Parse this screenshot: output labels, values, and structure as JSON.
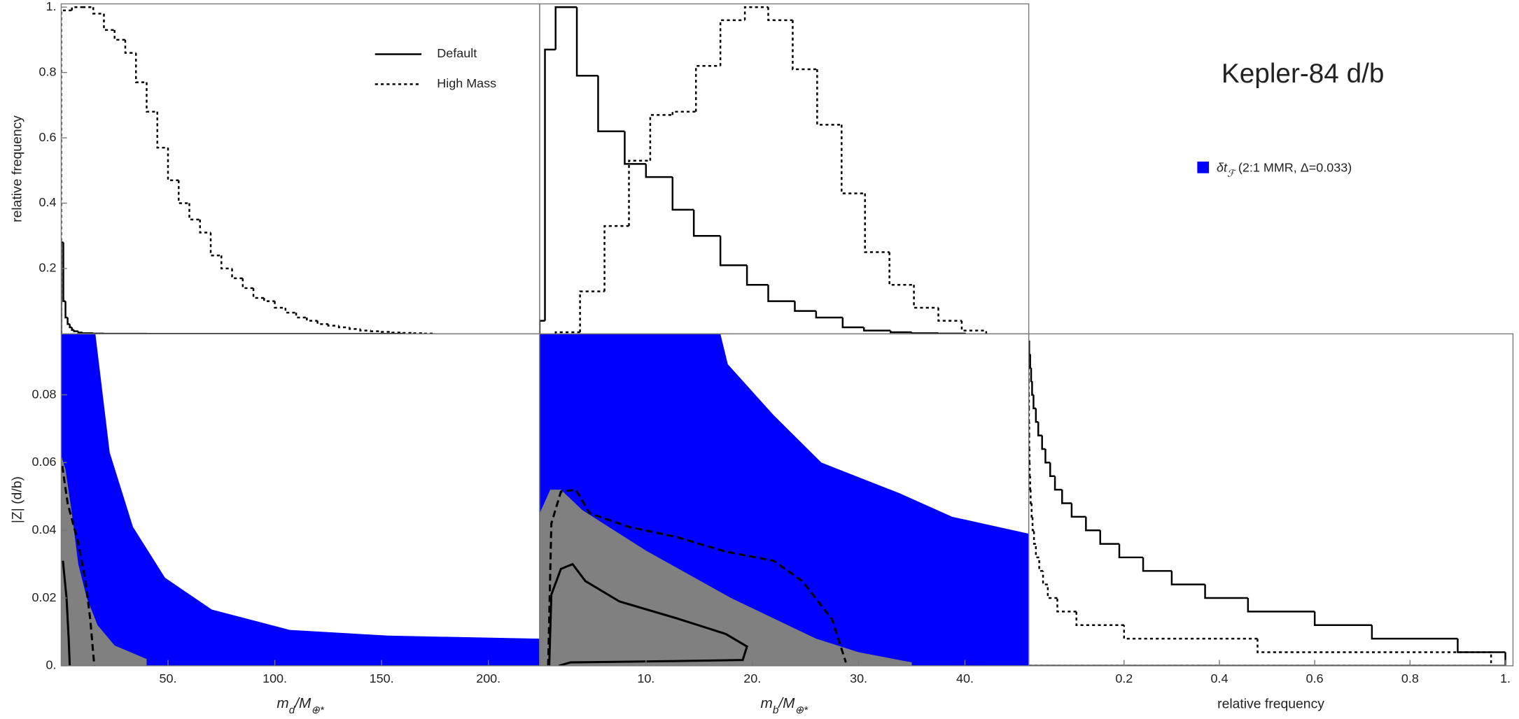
{
  "title": "Kepler-84 d/b",
  "region_legend": {
    "label_parts": [
      "δt",
      "ℱ",
      " (2:1 MMR, Δ=0.033)"
    ],
    "color": "#0000ff"
  },
  "chart_data": [
    {
      "type": "histogram",
      "ylabel": "relative frequency",
      "xlim": [
        0,
        224
      ],
      "ylim": [
        0,
        1.01
      ],
      "yticks": [
        0.2,
        0.4,
        0.6,
        0.8,
        {
          "value": 1,
          "label": "1."
        }
      ],
      "legend": "upper right",
      "series": [
        {
          "name": "Default",
          "style": "solid",
          "color": "#000000",
          "bins": [
            0,
            1,
            2,
            3,
            4,
            5,
            6,
            8,
            10,
            15,
            20,
            40,
            80,
            160
          ],
          "values": [
            0.28,
            0.1,
            0.05,
            0.03,
            0.02,
            0.012,
            0.008,
            0.004,
            0.002,
            0.001,
            0.0005,
            0.0002,
            0.0001
          ]
        },
        {
          "name": "High Mass",
          "style": "dotted",
          "color": "#000000",
          "bins": [
            0,
            5,
            10,
            15,
            20,
            25,
            30,
            35,
            40,
            45,
            50,
            55,
            60,
            65,
            70,
            75,
            80,
            85,
            90,
            95,
            100,
            105,
            110,
            115,
            120,
            125,
            130,
            135,
            140,
            145,
            150,
            155,
            160,
            165,
            170,
            175
          ],
          "values": [
            0.99,
            1.0,
            1.0,
            0.98,
            0.93,
            0.9,
            0.86,
            0.77,
            0.68,
            0.57,
            0.47,
            0.4,
            0.35,
            0.31,
            0.24,
            0.2,
            0.17,
            0.14,
            0.11,
            0.1,
            0.08,
            0.065,
            0.05,
            0.04,
            0.03,
            0.025,
            0.02,
            0.015,
            0.01,
            0.008,
            0.006,
            0.004,
            0.003,
            0.002,
            0.001
          ]
        }
      ]
    },
    {
      "type": "histogram",
      "xlim": [
        0,
        46
      ],
      "ylim": [
        0,
        1.01
      ],
      "series": [
        {
          "style": "solid",
          "color": "#000000",
          "bins": [
            0,
            0.5,
            1.5,
            3.5,
            5.5,
            8,
            10,
            12.5,
            14.5,
            17,
            19.5,
            21.5,
            24,
            26,
            28.5,
            30.5,
            33,
            35,
            37.5,
            40
          ],
          "values": [
            0.04,
            0.87,
            1.0,
            0.79,
            0.62,
            0.52,
            0.48,
            0.38,
            0.3,
            0.21,
            0.15,
            0.1,
            0.07,
            0.05,
            0.02,
            0.01,
            0.005,
            0.002,
            0.001
          ]
        },
        {
          "style": "dotted",
          "color": "#000000",
          "bins": [
            1.5,
            3.8,
            6.1,
            8.4,
            10.4,
            12.5,
            14.7,
            17,
            19.3,
            21.5,
            23.8,
            26.1,
            28.4,
            30.6,
            32.9,
            35.2,
            37.5,
            39.7,
            42
          ],
          "values": [
            0.005,
            0.13,
            0.33,
            0.53,
            0.67,
            0.68,
            0.82,
            0.96,
            1.0,
            0.96,
            0.81,
            0.64,
            0.43,
            0.25,
            0.15,
            0.08,
            0.04,
            0.01
          ]
        }
      ]
    },
    {
      "type": "region",
      "ylabel": "|Z| (d/b)",
      "xlabel_parts": [
        "m",
        "d",
        "/M",
        "⊕*"
      ],
      "xlim": [
        0,
        224
      ],
      "ylim": [
        0,
        0.098
      ],
      "xticks": [
        {
          "value": 50,
          "label": "50."
        },
        {
          "value": 100,
          "label": "100."
        },
        {
          "value": 150,
          "label": "150."
        },
        {
          "value": 200,
          "label": "200."
        }
      ],
      "yticks": [
        {
          "value": 0,
          "label": "0."
        },
        0.02,
        0.04,
        0.06,
        0.08
      ],
      "regions": [
        {
          "color": "#0000ff",
          "x": [
            0,
            16,
            22.7,
            33.6,
            48.6,
            70.5,
            107,
            153,
            224
          ],
          "y": [
            0.098,
            0.098,
            0.063,
            0.041,
            0.026,
            0.0166,
            0.0106,
            0.0089,
            0.008
          ]
        },
        {
          "color": "#808080",
          "x": [
            0,
            2,
            5,
            8,
            12,
            17,
            25,
            40
          ],
          "y": [
            0.062,
            0.058,
            0.045,
            0.03,
            0.02,
            0.012,
            0.006,
            0.002
          ]
        }
      ],
      "contours": [
        {
          "style": "dashed",
          "x": [
            0.5,
            3,
            7.7,
            11.4,
            13.6,
            15.5
          ],
          "y": [
            0.059,
            0.048,
            0.037,
            0.025,
            0.0137,
            0
          ]
        },
        {
          "style": "solid",
          "x": [
            0.8,
            2.5,
            3.5,
            4
          ],
          "y": [
            0.031,
            0.02,
            0.008,
            0
          ]
        }
      ]
    },
    {
      "type": "region",
      "xlabel_parts": [
        "m",
        "b",
        "/M",
        "⊕*"
      ],
      "xlim": [
        0,
        46
      ],
      "ylim": [
        0,
        0.098
      ],
      "xticks": [
        {
          "value": 10,
          "label": "10."
        },
        {
          "value": 20,
          "label": "20."
        },
        {
          "value": 30,
          "label": "30."
        },
        {
          "value": 40,
          "label": "40."
        }
      ],
      "regions": [
        {
          "color": "#0000ff",
          "x": [
            0,
            17,
            17.7,
            22,
            26.5,
            33.8,
            38.8,
            46
          ],
          "y": [
            0.098,
            0.098,
            0.089,
            0.074,
            0.06,
            0.051,
            0.044,
            0.039
          ]
        },
        {
          "color": "#808080",
          "x": [
            0,
            1,
            2,
            4,
            7,
            10,
            14,
            18,
            22,
            26,
            30,
            35
          ],
          "y": [
            0.045,
            0.052,
            0.052,
            0.046,
            0.04,
            0.034,
            0.027,
            0.02,
            0.014,
            0.008,
            0.004,
            0.001
          ]
        }
      ],
      "contours": [
        {
          "style": "dashed",
          "x": [
            0.8,
            1.1,
            2,
            3.4,
            4.7,
            8.4,
            12.9,
            17.5,
            22,
            24.7,
            27.5,
            28.8
          ],
          "y": [
            0,
            0.042,
            0.0514,
            0.052,
            0.045,
            0.041,
            0.038,
            0.0337,
            0.031,
            0.025,
            0.0137,
            0.001
          ]
        },
        {
          "style": "solid",
          "x": [
            0.9,
            1.1,
            2,
            3.1,
            4.3,
            7.5,
            12.9,
            17.5,
            19.5,
            19.1,
            12.9,
            2.9,
            1.8
          ],
          "y": [
            0,
            0.021,
            0.0286,
            0.03,
            0.025,
            0.019,
            0.014,
            0.0094,
            0.0057,
            0.0017,
            0.0014,
            0.001,
            0
          ]
        }
      ]
    },
    {
      "type": "histogram",
      "orientation": "horizontal",
      "xlabel": "relative frequency",
      "xlim": [
        0,
        1.016
      ],
      "ylim": [
        0,
        0.098
      ],
      "xticks": [
        0.2,
        0.4,
        0.6,
        0.8,
        {
          "value": 1,
          "label": "1."
        }
      ],
      "series": [
        {
          "style": "solid",
          "color": "#000000",
          "bins": [
            0,
            0.004,
            0.008,
            0.012,
            0.016,
            0.02,
            0.024,
            0.028,
            0.032,
            0.036,
            0.04,
            0.044,
            0.048,
            0.052,
            0.056,
            0.06,
            0.064,
            0.068,
            0.072,
            0.076,
            0.08,
            0.084,
            0.088,
            0.092,
            0.096
          ],
          "values": [
            1.0,
            0.9,
            0.72,
            0.6,
            0.46,
            0.37,
            0.3,
            0.24,
            0.19,
            0.15,
            0.12,
            0.09,
            0.07,
            0.055,
            0.045,
            0.035,
            0.028,
            0.02,
            0.015,
            0.01,
            0.007,
            0.005,
            0.003,
            0.001
          ]
        },
        {
          "style": "dotted",
          "color": "#000000",
          "bins": [
            0,
            0.004,
            0.008,
            0.012,
            0.016,
            0.02,
            0.024,
            0.028,
            0.032,
            0.036,
            0.04,
            0.044,
            0.048,
            0.052,
            0.056,
            0.06,
            0.064,
            0.068,
            0.072,
            0.076,
            0.08,
            0.084,
            0.088,
            0.092,
            0.096
          ],
          "values": [
            0.97,
            0.48,
            0.2,
            0.1,
            0.06,
            0.04,
            0.03,
            0.022,
            0.015,
            0.011,
            0.008,
            0.006,
            0.004,
            0.003,
            0.002,
            0.0015,
            0.001,
            0.001,
            0.0005,
            0.0005,
            0,
            0,
            0,
            0
          ]
        }
      ]
    }
  ]
}
